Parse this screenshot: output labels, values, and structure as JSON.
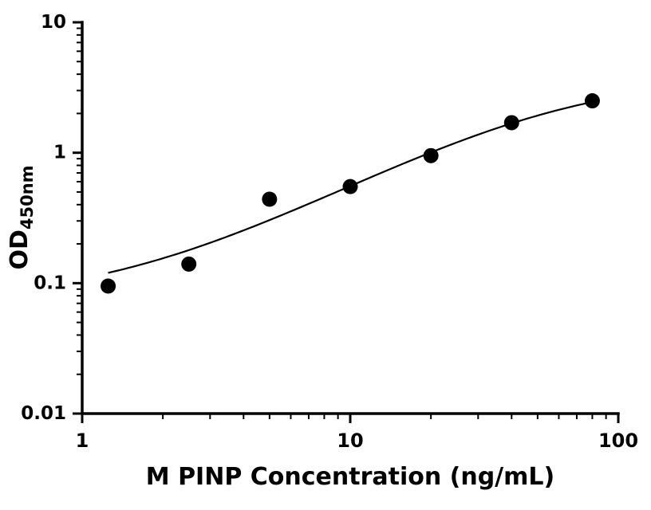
{
  "chart_data": {
    "type": "scatter",
    "title": "",
    "xlabel": "M PINP Concentration (ng/mL)",
    "ylabel": "OD450nm",
    "ylabel_base": "OD",
    "ylabel_sub": "450nm",
    "xscale": "log",
    "yscale": "log",
    "xlim": [
      1,
      100
    ],
    "ylim": [
      0.01,
      10
    ],
    "x_tick_labels": [
      "1",
      "10",
      "100"
    ],
    "y_tick_labels": [
      "10",
      "1",
      "0.1",
      "0.01"
    ],
    "grid": false,
    "legend": false,
    "x": [
      1.25,
      2.5,
      5,
      10,
      20,
      40,
      80
    ],
    "y": [
      0.095,
      0.14,
      0.44,
      0.55,
      0.95,
      1.7,
      2.5
    ],
    "marker_color": "#000000",
    "line_color": "#000000",
    "fit_curve": {
      "model": "4PL",
      "a": 0.07,
      "b": 1.15,
      "c": 55,
      "d": 4.0,
      "x_start": 1.25,
      "x_end": 80
    }
  }
}
